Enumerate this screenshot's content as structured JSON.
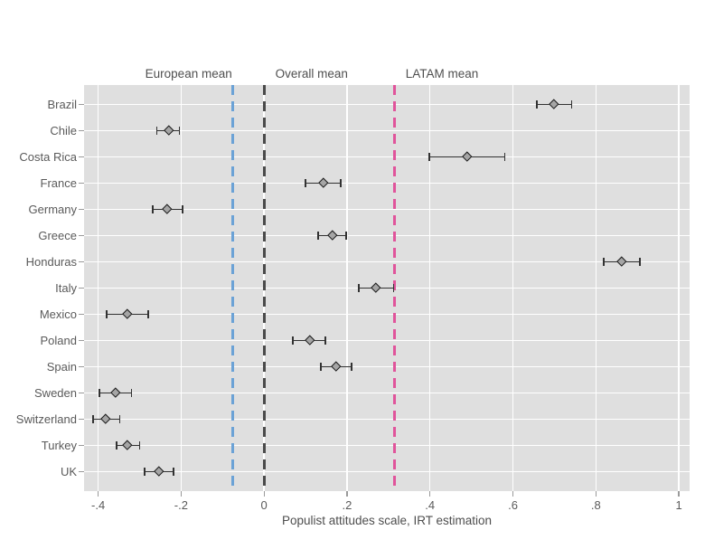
{
  "chart_data": {
    "type": "scatter",
    "subtype": "horizontal-dot-plot-with-95ci",
    "title": "",
    "xlabel": "Populist attitudes scale, IRT estimation",
    "ylabel": "",
    "xlim": [
      -0.434,
      1.026
    ],
    "grid": true,
    "x_ticks": [
      {
        "value": -0.4,
        "label": "-.4"
      },
      {
        "value": -0.2,
        "label": "-.2"
      },
      {
        "value": 0,
        "label": "0"
      },
      {
        "value": 0.2,
        "label": ".2"
      },
      {
        "value": 0.4,
        "label": ".4"
      },
      {
        "value": 0.6,
        "label": ".6"
      },
      {
        "value": 0.8,
        "label": ".8"
      },
      {
        "value": 1,
        "label": "1"
      }
    ],
    "points": [
      {
        "country": "Brazil",
        "estimate": 0.699,
        "ci_low": 0.656,
        "ci_high": 0.743
      },
      {
        "country": "Chile",
        "estimate": -0.23,
        "ci_low": -0.26,
        "ci_high": -0.202
      },
      {
        "country": "Costa Rica",
        "estimate": 0.49,
        "ci_low": 0.397,
        "ci_high": 0.582
      },
      {
        "country": "France",
        "estimate": 0.144,
        "ci_low": 0.098,
        "ci_high": 0.187
      },
      {
        "country": "Germany",
        "estimate": -0.233,
        "ci_low": -0.27,
        "ci_high": -0.195
      },
      {
        "country": "Greece",
        "estimate": 0.166,
        "ci_low": 0.129,
        "ci_high": 0.2
      },
      {
        "country": "Honduras",
        "estimate": 0.863,
        "ci_low": 0.817,
        "ci_high": 0.908
      },
      {
        "country": "Italy",
        "estimate": 0.27,
        "ci_low": 0.227,
        "ci_high": 0.314
      },
      {
        "country": "Mexico",
        "estimate": -0.329,
        "ci_low": -0.381,
        "ci_high": -0.277
      },
      {
        "country": "Poland",
        "estimate": 0.111,
        "ci_low": 0.068,
        "ci_high": 0.15
      },
      {
        "country": "Spain",
        "estimate": 0.174,
        "ci_low": 0.135,
        "ci_high": 0.213
      },
      {
        "country": "Sweden",
        "estimate": -0.357,
        "ci_low": -0.399,
        "ci_high": -0.318
      },
      {
        "country": "Switzerland",
        "estimate": -0.381,
        "ci_low": -0.414,
        "ci_high": -0.346
      },
      {
        "country": "Turkey",
        "estimate": -0.329,
        "ci_low": -0.357,
        "ci_high": -0.298
      },
      {
        "country": "UK",
        "estimate": -0.253,
        "ci_low": -0.29,
        "ci_high": -0.216
      }
    ],
    "reference_lines": [
      {
        "label": "European mean",
        "value": -0.075,
        "color": "#6ba2d6",
        "label_side": "left"
      },
      {
        "label": "Overall mean",
        "value": 0.001,
        "color": "#4a4a4a",
        "label_side": "right"
      },
      {
        "label": "LATAM mean",
        "value": 0.315,
        "color": "#e0549b",
        "label_side": "right"
      }
    ]
  },
  "colors": {
    "page_background": "#ffffff",
    "plot_background": "#dfdfdf",
    "gridline": "#ffffff",
    "ci_bar": "#323232",
    "marker_fill": "#a5a5a5",
    "marker_outline": "#1c1c1c",
    "text": "#5a5a5a"
  }
}
